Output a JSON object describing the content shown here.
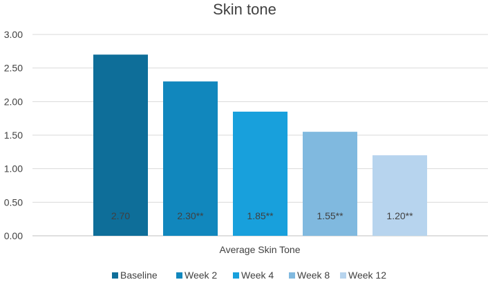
{
  "chart_data": {
    "type": "bar",
    "title": "Skin tone",
    "xlabel": "Average Skin Tone",
    "ylabel": "",
    "ylim": [
      0,
      3
    ],
    "yticks": [
      "0.00",
      "0.50",
      "1.00",
      "1.50",
      "2.00",
      "2.50",
      "3.00"
    ],
    "grid": true,
    "legend_position": "bottom",
    "categories": [
      "Average Skin Tone"
    ],
    "series": [
      {
        "name": "Baseline",
        "values": [
          2.7
        ],
        "label": "2.70",
        "color": "#0E6E99"
      },
      {
        "name": "Week 2",
        "values": [
          2.3
        ],
        "label": "2.30**",
        "color": "#1187BD"
      },
      {
        "name": "Week 4",
        "values": [
          1.85
        ],
        "label": "1.85**",
        "color": "#18A0DC"
      },
      {
        "name": "Week 8",
        "values": [
          1.55
        ],
        "label": "1.55**",
        "color": "#80B9DF"
      },
      {
        "name": "Week 12",
        "values": [
          1.2
        ],
        "label": "1.20**",
        "color": "#B7D4EE"
      }
    ]
  }
}
